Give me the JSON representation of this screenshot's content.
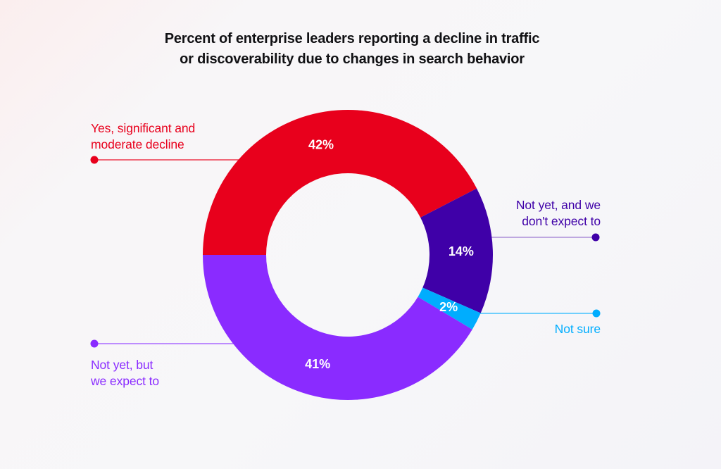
{
  "chart_data": {
    "type": "pie",
    "variant": "donut",
    "title": [
      "Percent of enterprise leaders reporting a decline in traffic",
      "or discoverability due to changes in search behavior"
    ],
    "unit": "%",
    "start_direction": "left",
    "direction": "clockwise",
    "slices": [
      {
        "name": "Yes, significant and moderate decline",
        "label_lines": [
          "Yes, significant and",
          "moderate decline"
        ],
        "value": 42,
        "display": "42%",
        "color": "#e8001c",
        "line_color": "#ee3a4f"
      },
      {
        "name": "Not yet, and we don't expect to",
        "label_lines": [
          "Not yet, and we",
          "don't expect to"
        ],
        "value": 14,
        "display": "14%",
        "color": "#3f00a8",
        "line_color": "#ab8ed8"
      },
      {
        "name": "Not sure",
        "label_lines": [
          "Not sure"
        ],
        "value": 2,
        "display": "2%",
        "color": "#00adfe",
        "line_color": "#43c2fd"
      },
      {
        "name": "Not yet, but we expect to",
        "label_lines": [
          "Not yet, but",
          "we expect to"
        ],
        "value": 41,
        "display": "41%",
        "color": "#8a2bff",
        "line_color": "#a968ff"
      }
    ]
  }
}
